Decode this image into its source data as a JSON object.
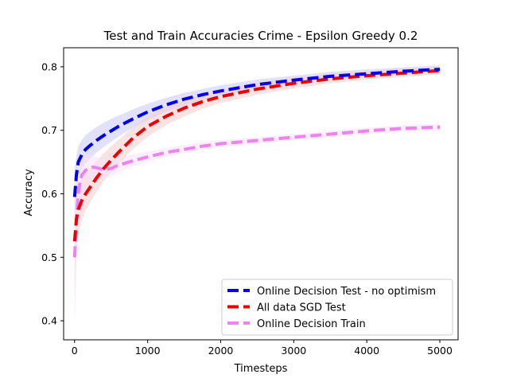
{
  "chart_data": {
    "type": "line",
    "title": "Test and Train Accuracies Crime - Epsilon Greedy 0.2",
    "xlabel": "Timesteps",
    "ylabel": "Accuracy",
    "xlim": [
      -150,
      5250
    ],
    "ylim": [
      0.37,
      0.83
    ],
    "xticks": [
      0,
      1000,
      2000,
      3000,
      4000,
      5000
    ],
    "yticks": [
      0.4,
      0.5,
      0.6,
      0.7,
      0.8
    ],
    "xtick_labels": [
      "0",
      "1000",
      "2000",
      "3000",
      "4000",
      "5000"
    ],
    "ytick_labels": [
      "0.4",
      "0.5",
      "0.6",
      "0.7",
      "0.8"
    ],
    "grid": false,
    "legend_position": "lower-right",
    "series": [
      {
        "name": "Online Decision Test - no optimism",
        "color": "#0000ee",
        "band_color": "#c8c8f8",
        "x": [
          0,
          25,
          50,
          100,
          150,
          200,
          300,
          400,
          500,
          600,
          800,
          1000,
          1250,
          1500,
          1750,
          2000,
          2500,
          3000,
          3500,
          4000,
          4500,
          5000
        ],
        "y": [
          0.595,
          0.63,
          0.65,
          0.662,
          0.67,
          0.675,
          0.684,
          0.692,
          0.699,
          0.706,
          0.718,
          0.729,
          0.74,
          0.749,
          0.756,
          0.762,
          0.772,
          0.779,
          0.785,
          0.789,
          0.793,
          0.796
        ],
        "lower": [
          0.55,
          0.6,
          0.625,
          0.64,
          0.648,
          0.654,
          0.665,
          0.674,
          0.682,
          0.69,
          0.704,
          0.716,
          0.729,
          0.739,
          0.747,
          0.754,
          0.764,
          0.772,
          0.778,
          0.783,
          0.787,
          0.79
        ],
        "upper": [
          0.64,
          0.66,
          0.675,
          0.685,
          0.692,
          0.697,
          0.705,
          0.712,
          0.718,
          0.723,
          0.733,
          0.742,
          0.751,
          0.759,
          0.765,
          0.771,
          0.78,
          0.786,
          0.792,
          0.796,
          0.799,
          0.802
        ]
      },
      {
        "name": "All data SGD Test",
        "color": "#ee0000",
        "band_color": "#f8cccc",
        "x": [
          0,
          25,
          50,
          100,
          150,
          200,
          300,
          400,
          500,
          600,
          800,
          1000,
          1250,
          1500,
          1750,
          2000,
          2500,
          3000,
          3500,
          4000,
          4500,
          5000
        ],
        "y": [
          0.525,
          0.56,
          0.575,
          0.59,
          0.6,
          0.608,
          0.625,
          0.64,
          0.653,
          0.665,
          0.688,
          0.706,
          0.722,
          0.735,
          0.745,
          0.753,
          0.765,
          0.774,
          0.781,
          0.786,
          0.79,
          0.794
        ],
        "lower": [
          0.44,
          0.51,
          0.535,
          0.56,
          0.574,
          0.584,
          0.603,
          0.62,
          0.634,
          0.647,
          0.671,
          0.69,
          0.708,
          0.722,
          0.734,
          0.743,
          0.756,
          0.766,
          0.774,
          0.78,
          0.784,
          0.788
        ],
        "upper": [
          0.6,
          0.61,
          0.618,
          0.625,
          0.632,
          0.638,
          0.652,
          0.664,
          0.675,
          0.685,
          0.705,
          0.722,
          0.736,
          0.748,
          0.757,
          0.764,
          0.775,
          0.783,
          0.789,
          0.793,
          0.797,
          0.8
        ]
      },
      {
        "name": "Online Decision Train",
        "color": "#ee82ee",
        "band_color": "#fbe0fb",
        "x": [
          0,
          25,
          50,
          75,
          100,
          150,
          200,
          250,
          300,
          400,
          500,
          600,
          800,
          1000,
          1250,
          1500,
          1750,
          2000,
          2500,
          3000,
          3500,
          4000,
          4500,
          5000
        ],
        "y": [
          0.5,
          0.56,
          0.6,
          0.62,
          0.63,
          0.637,
          0.64,
          0.642,
          0.641,
          0.638,
          0.64,
          0.645,
          0.652,
          0.658,
          0.665,
          0.67,
          0.675,
          0.679,
          0.684,
          0.689,
          0.694,
          0.699,
          0.703,
          0.705
        ],
        "lower": [
          0.39,
          0.48,
          0.55,
          0.585,
          0.6,
          0.614,
          0.62,
          0.624,
          0.625,
          0.625,
          0.628,
          0.634,
          0.643,
          0.65,
          0.658,
          0.664,
          0.669,
          0.674,
          0.679,
          0.684,
          0.689,
          0.694,
          0.698,
          0.7
        ],
        "upper": [
          0.62,
          0.635,
          0.645,
          0.652,
          0.657,
          0.66,
          0.662,
          0.661,
          0.658,
          0.652,
          0.653,
          0.657,
          0.662,
          0.666,
          0.672,
          0.677,
          0.681,
          0.685,
          0.689,
          0.694,
          0.699,
          0.704,
          0.708,
          0.71
        ]
      }
    ]
  }
}
